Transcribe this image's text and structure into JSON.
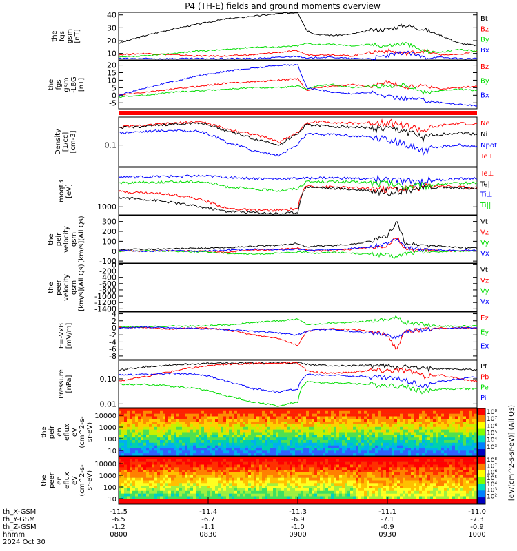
{
  "title": "P4 (TH-E) fields and ground moments overview",
  "colors": {
    "black": "#000000",
    "red": "#ff0000",
    "green": "#00dd00",
    "blue": "#0000ff"
  },
  "ephemeris": {
    "rows": [
      {
        "label": "th_X-GSM",
        "values": [
          "-11.5",
          "-11.4",
          "-11.3",
          "-11.1",
          "-11.0"
        ]
      },
      {
        "label": "th_Y-GSM",
        "values": [
          "-6.5",
          "-6.7",
          "-6.9",
          "-7.1",
          "-7.3"
        ]
      },
      {
        "label": "th_Z-GSM",
        "values": [
          "-1.2",
          "-1.1",
          "-1.0",
          "-0.9",
          "-0.9"
        ]
      },
      {
        "label": "hhmm",
        "values": [
          "0800",
          "0830",
          "0900",
          "0930",
          "1000"
        ]
      }
    ],
    "date": "2024 Oct 30"
  },
  "chart_data": [
    {
      "type": "line",
      "ylabel": [
        "the",
        "fgs",
        "gsm",
        "[nT]"
      ],
      "ylim": [
        5,
        42
      ],
      "ticks": [
        "40",
        "30",
        "20",
        "10"
      ],
      "legend": [
        {
          "name": "Bt",
          "color": "#000000"
        },
        {
          "name": "Bz",
          "color": "#ff0000"
        },
        {
          "name": "By",
          "color": "#00dd00"
        },
        {
          "name": "Bx",
          "color": "#0000ff"
        }
      ],
      "x": [
        0,
        15,
        30,
        45,
        60,
        75,
        90,
        100,
        105,
        110,
        120,
        130,
        140,
        150,
        160,
        170,
        180,
        190,
        200
      ],
      "series": [
        {
          "name": "Bt",
          "values": [
            18,
            24,
            29,
            33,
            37,
            39,
            41,
            42,
            28,
            25,
            24,
            25,
            28,
            29,
            32,
            29,
            24,
            18,
            16
          ]
        },
        {
          "name": "Bz",
          "values": [
            9,
            10,
            9,
            8,
            8,
            9,
            11,
            12,
            9,
            9,
            9,
            8,
            11,
            12,
            10,
            12,
            9,
            9,
            12
          ]
        },
        {
          "name": "By",
          "values": [
            7,
            8,
            10,
            12,
            13,
            15,
            15,
            16,
            18,
            17,
            17,
            16,
            17,
            16,
            18,
            12,
            11,
            13,
            12
          ]
        },
        {
          "name": "Bx",
          "values": [
            6,
            6,
            6,
            6,
            6,
            6,
            7,
            8,
            6,
            7,
            7,
            6,
            6,
            8,
            11,
            7,
            7,
            6,
            6
          ]
        }
      ]
    },
    {
      "type": "line",
      "ylabel": [
        "the",
        "fgs",
        "gsm",
        "-LBG",
        "[nT]"
      ],
      "ylim": [
        -9,
        23
      ],
      "ticks": [
        "20",
        "15",
        "10",
        "5",
        "0",
        "-5"
      ],
      "legend": [
        {
          "name": "Bz",
          "color": "#ff0000"
        },
        {
          "name": "By",
          "color": "#00dd00"
        },
        {
          "name": "Bx",
          "color": "#0000ff"
        }
      ],
      "x": [
        0,
        15,
        30,
        45,
        60,
        75,
        90,
        100,
        105,
        110,
        120,
        130,
        140,
        150,
        160,
        170,
        180,
        190,
        200
      ],
      "series": [
        {
          "name": "Bz",
          "values": [
            0,
            2,
            4,
            6,
            8,
            9,
            10,
            11,
            3,
            5,
            6,
            7,
            6,
            9,
            5,
            7,
            4,
            5,
            6
          ]
        },
        {
          "name": "By",
          "values": [
            -1,
            0,
            2,
            3,
            4,
            5,
            5,
            6,
            4,
            6,
            7,
            5,
            6,
            6,
            7,
            2,
            3,
            4,
            3
          ]
        },
        {
          "name": "Bx",
          "values": [
            0,
            5,
            9,
            13,
            16,
            18,
            20,
            20,
            5,
            4,
            2,
            1,
            2,
            -1,
            -2,
            -3,
            -5,
            -6,
            -7
          ]
        }
      ]
    },
    {
      "type": "line",
      "ylabel": [
        "Density",
        "[1/cc]",
        "[cm-3]"
      ],
      "ylim": [
        0.025,
        0.6
      ],
      "log": true,
      "ticks": [
        "0.1"
      ],
      "legend": [
        {
          "name": "Ne",
          "color": "#ff0000"
        },
        {
          "name": "Ni",
          "color": "#000000"
        },
        {
          "name": "Npot",
          "color": "#0000ff"
        },
        {
          "name": "Te⊥",
          "color": "#ff0000"
        }
      ],
      "x": [
        0,
        15,
        30,
        45,
        60,
        75,
        90,
        100,
        105,
        110,
        120,
        130,
        140,
        150,
        160,
        170,
        180,
        190,
        200
      ],
      "series": [
        {
          "name": "Ne",
          "values": [
            0.32,
            0.35,
            0.4,
            0.45,
            0.28,
            0.2,
            0.12,
            0.22,
            0.4,
            0.45,
            0.43,
            0.4,
            0.42,
            0.45,
            0.35,
            0.25,
            0.35,
            0.4,
            0.38
          ]
        },
        {
          "name": "Ni",
          "values": [
            0.3,
            0.33,
            0.38,
            0.42,
            0.25,
            0.15,
            0.1,
            0.2,
            0.38,
            0.35,
            0.33,
            0.32,
            0.3,
            0.28,
            0.25,
            0.15,
            0.2,
            0.22,
            0.2
          ]
        },
        {
          "name": "Npot",
          "values": [
            0.22,
            0.24,
            0.26,
            0.24,
            0.12,
            0.07,
            0.05,
            0.1,
            0.2,
            0.2,
            0.2,
            0.18,
            0.17,
            0.15,
            0.1,
            0.07,
            0.09,
            0.1,
            0.09
          ]
        }
      ]
    },
    {
      "type": "line",
      "ylabel": [
        "moqt3",
        "[eV]"
      ],
      "ylim": [
        600,
        12000
      ],
      "log": true,
      "ticks": [
        "1000"
      ],
      "legend": [
        {
          "name": "Te⊥",
          "color": "#ff0000"
        },
        {
          "name": "Te||",
          "color": "#000000"
        },
        {
          "name": "Ti⊥",
          "color": "#0000ff"
        },
        {
          "name": "Ti||",
          "color": "#00dd00"
        }
      ],
      "x": [
        0,
        15,
        30,
        45,
        60,
        75,
        90,
        100,
        105,
        110,
        120,
        130,
        140,
        150,
        160,
        170,
        180,
        190,
        200
      ],
      "series": [
        {
          "name": "Te⊥",
          "values": [
            2600,
            2400,
            2200,
            1600,
            900,
            800,
            800,
            900,
            3800,
            3600,
            3500,
            3300,
            3200,
            3000,
            3200,
            3600,
            3800,
            3500,
            3300
          ]
        },
        {
          "name": "Te||",
          "values": [
            1800,
            1600,
            1300,
            1000,
            750,
            700,
            650,
            700,
            3600,
            3400,
            3200,
            3000,
            2800,
            2600,
            3000,
            3300,
            3400,
            3300,
            3100
          ]
        },
        {
          "name": "Ti⊥",
          "values": [
            6500,
            6600,
            6800,
            7000,
            6500,
            6000,
            5800,
            6000,
            6000,
            6200,
            6200,
            6000,
            5800,
            5600,
            4800,
            5000,
            5500,
            5800,
            6000
          ]
        },
        {
          "name": "Ti||",
          "values": [
            4500,
            4700,
            4800,
            5000,
            3600,
            3000,
            2800,
            3200,
            4800,
            4900,
            4900,
            4800,
            4600,
            4400,
            3600,
            3800,
            4200,
            4400,
            4600
          ]
        }
      ]
    },
    {
      "type": "line",
      "ylabel": [
        "the",
        "peir",
        "velocity",
        "gsm",
        "[km/s](All Qs)"
      ],
      "ylim": [
        -120,
        360
      ],
      "ticks": [
        "300",
        "200",
        "100",
        "0",
        "-100"
      ],
      "legend": [
        {
          "name": "Vt",
          "color": "#000000"
        },
        {
          "name": "Vz",
          "color": "#ff0000"
        },
        {
          "name": "Vy",
          "color": "#00dd00"
        },
        {
          "name": "Vx",
          "color": "#0000ff"
        }
      ],
      "x": [
        0,
        15,
        30,
        45,
        60,
        75,
        90,
        100,
        105,
        110,
        120,
        130,
        140,
        150,
        155,
        160,
        170,
        180,
        190,
        200
      ],
      "series": [
        {
          "name": "Vt",
          "values": [
            20,
            20,
            25,
            30,
            35,
            50,
            60,
            80,
            40,
            50,
            60,
            70,
            100,
            150,
            300,
            80,
            60,
            50,
            40,
            30
          ]
        },
        {
          "name": "Vz",
          "values": [
            5,
            0,
            5,
            0,
            -10,
            10,
            20,
            30,
            10,
            0,
            5,
            20,
            40,
            60,
            150,
            20,
            10,
            5,
            0,
            5
          ]
        },
        {
          "name": "Vy",
          "values": [
            0,
            5,
            0,
            -5,
            -20,
            -30,
            -20,
            -10,
            -10,
            -20,
            -10,
            -20,
            -30,
            -40,
            -60,
            -20,
            -10,
            -5,
            0,
            5
          ]
        },
        {
          "name": "Vx",
          "values": [
            10,
            0,
            5,
            0,
            10,
            20,
            15,
            20,
            10,
            10,
            20,
            30,
            40,
            80,
            120,
            30,
            20,
            10,
            10,
            10
          ]
        }
      ]
    },
    {
      "type": "line",
      "ylabel": [
        "the",
        "peer",
        "velocity",
        "gsm",
        "[km/s](All Qs)"
      ],
      "ylim": [
        -1480,
        30
      ],
      "ticks": [
        "0",
        "-200",
        "-400",
        "-600",
        "-800",
        "-1000",
        "-1200",
        "-1400"
      ],
      "legend": [
        {
          "name": "Vt",
          "color": "#000000"
        },
        {
          "name": "Vz",
          "color": "#ff0000"
        },
        {
          "name": "Vy",
          "color": "#00dd00"
        },
        {
          "name": "Vx",
          "color": "#0000ff"
        }
      ],
      "x": [
        0,
        200
      ],
      "series": []
    },
    {
      "type": "line",
      "ylabel": [
        "E=-VxB",
        "[mV/m]"
      ],
      "ylim": [
        -9,
        4.5
      ],
      "ticks": [
        "4",
        "2",
        "0",
        "-2",
        "-4",
        "-6",
        "-8"
      ],
      "legend": [
        {
          "name": "Ez",
          "color": "#ff0000"
        },
        {
          "name": "Ey",
          "color": "#00dd00"
        },
        {
          "name": "Ex",
          "color": "#0000ff"
        }
      ],
      "x": [
        0,
        15,
        30,
        45,
        60,
        75,
        90,
        100,
        105,
        110,
        120,
        130,
        140,
        150,
        155,
        160,
        170,
        180,
        190,
        200
      ],
      "series": [
        {
          "name": "Ez",
          "values": [
            0.2,
            0,
            -0.3,
            0,
            -0.5,
            -2,
            -3,
            -5,
            -1,
            -0.5,
            -0.3,
            -0.5,
            -1,
            -2,
            -6,
            -1,
            -0.5,
            0,
            0,
            0
          ]
        },
        {
          "name": "Ey",
          "values": [
            0.3,
            0.3,
            0.5,
            0.5,
            0.8,
            1.5,
            2,
            2.5,
            1,
            1,
            1.5,
            1.5,
            2,
            2.5,
            3,
            1.5,
            1,
            0.5,
            0.5,
            0.5
          ]
        },
        {
          "name": "Ex",
          "values": [
            0,
            0.2,
            0,
            -0.2,
            -0.5,
            -1,
            -1.5,
            -2,
            -1,
            -0.5,
            -0.5,
            -1,
            -1.5,
            -2,
            -3,
            -1,
            -0.5,
            -0.2,
            0,
            0
          ]
        }
      ]
    },
    {
      "type": "line",
      "ylabel": [
        "Pressure",
        "[nPa]"
      ],
      "ylim": [
        0.007,
        0.55
      ],
      "log": true,
      "ticks": [
        "0.10",
        "0.01"
      ],
      "legend": [
        {
          "name": "Pt",
          "color": "#000000"
        },
        {
          "name": "Pb",
          "color": "#ff0000"
        },
        {
          "name": "Pe",
          "color": "#00dd00"
        },
        {
          "name": "Pi",
          "color": "#0000ff"
        }
      ],
      "x": [
        0,
        15,
        30,
        45,
        60,
        75,
        90,
        100,
        105,
        110,
        120,
        130,
        140,
        150,
        160,
        170,
        180,
        190,
        200
      ],
      "series": [
        {
          "name": "Pt",
          "values": [
            0.22,
            0.3,
            0.36,
            0.4,
            0.42,
            0.43,
            0.44,
            0.44,
            0.38,
            0.35,
            0.33,
            0.33,
            0.34,
            0.33,
            0.3,
            0.25,
            0.26,
            0.24,
            0.23
          ]
        },
        {
          "name": "Pb",
          "values": [
            0.08,
            0.12,
            0.2,
            0.3,
            0.38,
            0.4,
            0.42,
            0.43,
            0.2,
            0.18,
            0.17,
            0.18,
            0.22,
            0.22,
            0.22,
            0.13,
            0.14,
            0.1,
            0.08
          ]
        },
        {
          "name": "Pe",
          "values": [
            0.06,
            0.06,
            0.05,
            0.04,
            0.02,
            0.012,
            0.008,
            0.012,
            0.08,
            0.07,
            0.07,
            0.065,
            0.06,
            0.055,
            0.05,
            0.03,
            0.04,
            0.04,
            0.04
          ]
        },
        {
          "name": "Pi",
          "values": [
            0.14,
            0.15,
            0.16,
            0.15,
            0.08,
            0.04,
            0.03,
            0.04,
            0.15,
            0.14,
            0.14,
            0.13,
            0.12,
            0.11,
            0.09,
            0.05,
            0.08,
            0.1,
            0.12
          ]
        }
      ]
    },
    {
      "type": "heatmap",
      "ylabel": [
        "the",
        "peir",
        "en",
        "eflux",
        "eV",
        "(cm^2-s-",
        "sr-eV)"
      ],
      "ticks": [
        "10000",
        "1000",
        "100",
        "10"
      ],
      "colorbar": {
        "ticks": [
          "10⁸",
          "10⁷",
          "10⁶",
          "10⁵",
          "10⁴",
          "10³"
        ]
      }
    },
    {
      "type": "heatmap",
      "ylabel": [
        "the",
        "peer",
        "en",
        "eflux",
        "eV",
        "(cm^2-s-",
        "sr-eV)"
      ],
      "ticks": [
        "10000",
        "1000",
        "100",
        "10"
      ],
      "colorbar": {
        "ticks": [
          "10⁸",
          "10⁷",
          "10⁶",
          "10⁵",
          "10⁴",
          "10³",
          "10²"
        ]
      },
      "colorbar_label": "[eV/(cm^2-s-sr-eV)] (All Qs)"
    }
  ]
}
